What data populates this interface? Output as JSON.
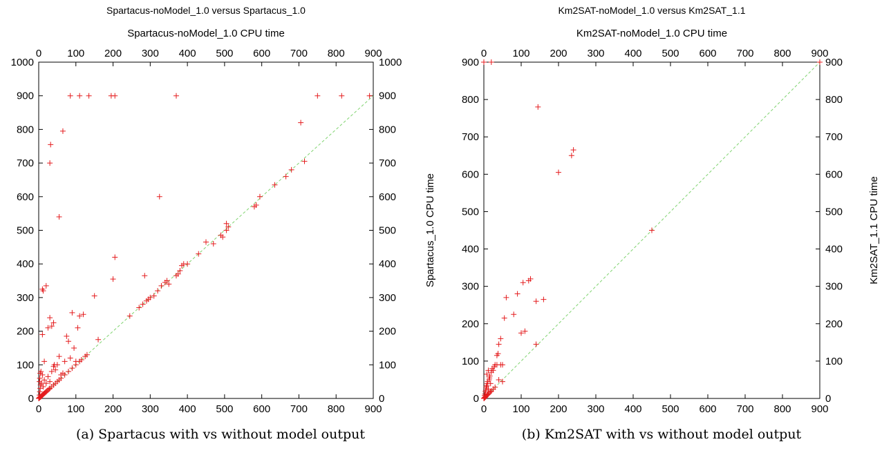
{
  "chart_data": [
    {
      "type": "scatter",
      "title": "Spartacus-noModel_1.0 versus Spartacus_1.0",
      "xlabel": "Spartacus-noModel_1.0 CPU time",
      "ylabel": "Spartacus_1.0 CPU time",
      "caption": "(a) Spartacus with vs without model output",
      "xlim": [
        0,
        900
      ],
      "ylim": [
        0,
        1000
      ],
      "xticks": [
        "0",
        "100",
        "200",
        "300",
        "400",
        "500",
        "600",
        "700",
        "800",
        "900"
      ],
      "yticks": [
        "0",
        "100",
        "200",
        "300",
        "400",
        "500",
        "600",
        "700",
        "800",
        "900",
        "1000"
      ],
      "diagonal": [
        900,
        900
      ],
      "marker_color": "#e41a1c",
      "diagonal_color": "#7fd36f",
      "points": [
        [
          0,
          0
        ],
        [
          1,
          1
        ],
        [
          2,
          2
        ],
        [
          3,
          3
        ],
        [
          4,
          4
        ],
        [
          5,
          5
        ],
        [
          6,
          6
        ],
        [
          7,
          7
        ],
        [
          8,
          8
        ],
        [
          10,
          10
        ],
        [
          12,
          12
        ],
        [
          14,
          14
        ],
        [
          16,
          16
        ],
        [
          18,
          18
        ],
        [
          20,
          20
        ],
        [
          22,
          22
        ],
        [
          25,
          25
        ],
        [
          28,
          28
        ],
        [
          30,
          30
        ],
        [
          35,
          35
        ],
        [
          40,
          40
        ],
        [
          45,
          45
        ],
        [
          50,
          50
        ],
        [
          55,
          55
        ],
        [
          60,
          60
        ],
        [
          70,
          70
        ],
        [
          80,
          80
        ],
        [
          90,
          90
        ],
        [
          100,
          100
        ],
        [
          110,
          110
        ],
        [
          2,
          10
        ],
        [
          3,
          20
        ],
        [
          4,
          30
        ],
        [
          5,
          40
        ],
        [
          2,
          50
        ],
        [
          3,
          60
        ],
        [
          4,
          75
        ],
        [
          6,
          80
        ],
        [
          8,
          45
        ],
        [
          10,
          70
        ],
        [
          12,
          35
        ],
        [
          15,
          55
        ],
        [
          20,
          45
        ],
        [
          25,
          65
        ],
        [
          30,
          50
        ],
        [
          35,
          80
        ],
        [
          40,
          95
        ],
        [
          42,
          100
        ],
        [
          45,
          85
        ],
        [
          50,
          100
        ],
        [
          60,
          70
        ],
        [
          65,
          75
        ],
        [
          70,
          110
        ],
        [
          75,
          185
        ],
        [
          80,
          170
        ],
        [
          85,
          120
        ],
        [
          90,
          255
        ],
        [
          95,
          150
        ],
        [
          100,
          110
        ],
        [
          105,
          210
        ],
        [
          110,
          245
        ],
        [
          115,
          115
        ],
        [
          120,
          250
        ],
        [
          125,
          125
        ],
        [
          130,
          130
        ],
        [
          160,
          175
        ],
        [
          10,
          190
        ],
        [
          10,
          325
        ],
        [
          12,
          320
        ],
        [
          15,
          110
        ],
        [
          20,
          335
        ],
        [
          25,
          210
        ],
        [
          30,
          240
        ],
        [
          35,
          215
        ],
        [
          40,
          225
        ],
        [
          55,
          125
        ],
        [
          55,
          540
        ],
        [
          30,
          700
        ],
        [
          32,
          755
        ],
        [
          65,
          795
        ],
        [
          85,
          900
        ],
        [
          110,
          900
        ],
        [
          135,
          900
        ],
        [
          195,
          900
        ],
        [
          205,
          900
        ],
        [
          370,
          900
        ],
        [
          750,
          900
        ],
        [
          815,
          900
        ],
        [
          890,
          900
        ],
        [
          200,
          355
        ],
        [
          205,
          420
        ],
        [
          150,
          305
        ],
        [
          285,
          365
        ],
        [
          325,
          600
        ],
        [
          245,
          245
        ],
        [
          270,
          270
        ],
        [
          280,
          280
        ],
        [
          290,
          290
        ],
        [
          295,
          295
        ],
        [
          300,
          300
        ],
        [
          310,
          305
        ],
        [
          320,
          320
        ],
        [
          330,
          335
        ],
        [
          340,
          345
        ],
        [
          345,
          350
        ],
        [
          350,
          340
        ],
        [
          370,
          365
        ],
        [
          375,
          370
        ],
        [
          380,
          380
        ],
        [
          385,
          395
        ],
        [
          390,
          400
        ],
        [
          400,
          400
        ],
        [
          430,
          430
        ],
        [
          450,
          465
        ],
        [
          470,
          460
        ],
        [
          490,
          485
        ],
        [
          495,
          480
        ],
        [
          505,
          500
        ],
        [
          505,
          520
        ],
        [
          510,
          510
        ],
        [
          580,
          570
        ],
        [
          585,
          575
        ],
        [
          595,
          600
        ],
        [
          635,
          635
        ],
        [
          665,
          660
        ],
        [
          680,
          680
        ],
        [
          705,
          820
        ],
        [
          715,
          705
        ]
      ]
    },
    {
      "type": "scatter",
      "title": "Km2SAT-noModel_1.0 versus Km2SAT_1.1",
      "xlabel": "Km2SAT-noModel_1.0 CPU time",
      "ylabel": "Km2SAT_1.1 CPU time",
      "caption": "(b) Km2SAT with vs without model output",
      "xlim": [
        0,
        900
      ],
      "ylim": [
        0,
        900
      ],
      "xticks": [
        "0",
        "100",
        "200",
        "300",
        "400",
        "500",
        "600",
        "700",
        "800",
        "900"
      ],
      "yticks": [
        "0",
        "100",
        "200",
        "300",
        "400",
        "500",
        "600",
        "700",
        "800",
        "900"
      ],
      "diagonal": [
        900,
        900
      ],
      "marker_color": "#e41a1c",
      "diagonal_color": "#7fd36f",
      "points": [
        [
          0,
          0
        ],
        [
          1,
          1
        ],
        [
          2,
          2
        ],
        [
          3,
          3
        ],
        [
          4,
          4
        ],
        [
          5,
          5
        ],
        [
          6,
          6
        ],
        [
          8,
          8
        ],
        [
          10,
          10
        ],
        [
          12,
          12
        ],
        [
          15,
          15
        ],
        [
          18,
          18
        ],
        [
          20,
          20
        ],
        [
          25,
          25
        ],
        [
          30,
          30
        ],
        [
          2,
          8
        ],
        [
          3,
          12
        ],
        [
          4,
          18
        ],
        [
          5,
          22
        ],
        [
          6,
          28
        ],
        [
          7,
          32
        ],
        [
          8,
          35
        ],
        [
          9,
          40
        ],
        [
          10,
          45
        ],
        [
          12,
          25
        ],
        [
          14,
          50
        ],
        [
          15,
          55
        ],
        [
          16,
          60
        ],
        [
          18,
          40
        ],
        [
          20,
          70
        ],
        [
          22,
          80
        ],
        [
          25,
          75
        ],
        [
          28,
          85
        ],
        [
          30,
          90
        ],
        [
          8,
          65
        ],
        [
          12,
          75
        ],
        [
          35,
          90
        ],
        [
          40,
          50
        ],
        [
          45,
          90
        ],
        [
          50,
          45
        ],
        [
          35,
          115
        ],
        [
          38,
          120
        ],
        [
          40,
          145
        ],
        [
          45,
          160
        ],
        [
          50,
          90
        ],
        [
          55,
          215
        ],
        [
          60,
          270
        ],
        [
          80,
          225
        ],
        [
          90,
          280
        ],
        [
          100,
          175
        ],
        [
          105,
          310
        ],
        [
          110,
          180
        ],
        [
          120,
          315
        ],
        [
          125,
          320
        ],
        [
          140,
          260
        ],
        [
          160,
          265
        ],
        [
          140,
          145
        ],
        [
          0,
          900
        ],
        [
          20,
          900
        ],
        [
          145,
          780
        ],
        [
          200,
          605
        ],
        [
          240,
          665
        ],
        [
          235,
          650
        ],
        [
          450,
          450
        ],
        [
          900,
          900
        ]
      ]
    }
  ]
}
